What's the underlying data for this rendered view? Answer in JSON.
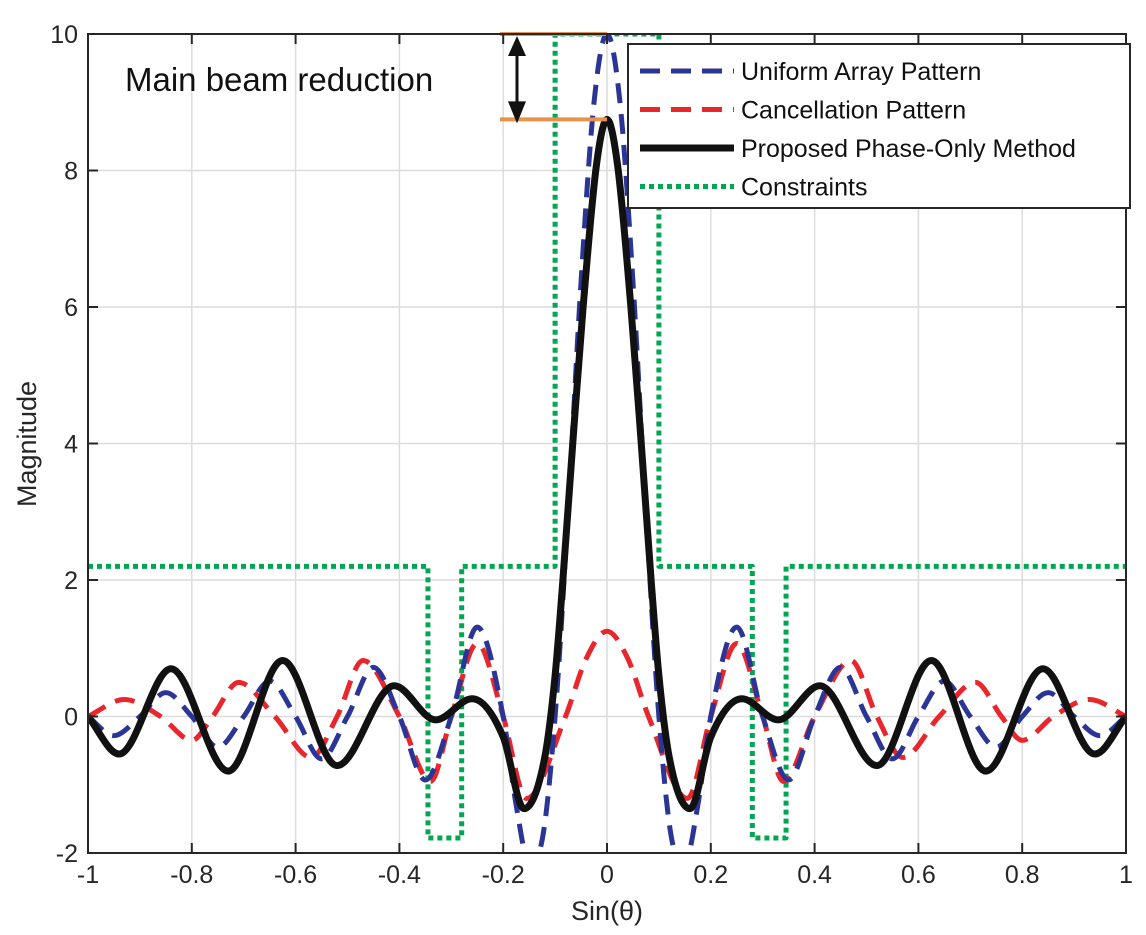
{
  "chart_data": {
    "type": "line",
    "title": "",
    "xlabel": "Sin(θ)",
    "ylabel": "Magnitude",
    "xlim": [
      -1,
      1
    ],
    "ylim": [
      -2,
      10
    ],
    "xticks": [
      -1,
      -0.8,
      -0.6,
      -0.4,
      -0.2,
      0,
      0.2,
      0.4,
      0.6,
      0.8,
      1
    ],
    "xtick_labels": [
      "-1",
      "-0.8",
      "-0.6",
      "-0.4",
      "-0.2",
      "0",
      "0.2",
      "0.4",
      "0.6",
      "0.8",
      "1"
    ],
    "yticks": [
      -2,
      0,
      2,
      4,
      6,
      8,
      10
    ],
    "ytick_labels": [
      "-2",
      "0",
      "2",
      "4",
      "6",
      "8",
      "10"
    ],
    "grid": true,
    "legend_position": "top-right",
    "series": [
      {
        "name": "Uniform Array Pattern",
        "style": "dashed",
        "color": "#2b3596",
        "x": [
          -1,
          -0.95,
          -0.9,
          -0.85,
          -0.8,
          -0.75,
          -0.7,
          -0.65,
          -0.6,
          -0.55,
          -0.5,
          -0.45,
          -0.4,
          -0.35,
          -0.3,
          -0.25,
          -0.2,
          -0.175,
          -0.15,
          -0.125,
          -0.1,
          -0.075,
          -0.05,
          -0.025,
          0,
          0.025,
          0.05,
          0.075,
          0.1,
          0.125,
          0.15,
          0.175,
          0.2,
          0.25,
          0.3,
          0.35,
          0.4,
          0.45,
          0.5,
          0.55,
          0.6,
          0.65,
          0.7,
          0.75,
          0.8,
          0.85,
          0.9,
          0.95,
          1
        ],
        "y": [
          0,
          -0.28,
          0,
          0.35,
          0,
          -0.45,
          0,
          0.52,
          0,
          -0.62,
          0,
          0.72,
          0,
          -0.93,
          0,
          1.31,
          0,
          -1.3,
          -2.14,
          -1.81,
          0,
          3.0,
          6.37,
          9.0,
          10,
          9.0,
          6.37,
          3.0,
          0,
          -1.81,
          -2.14,
          -1.3,
          0,
          1.31,
          0,
          -0.93,
          0,
          0.72,
          0,
          -0.62,
          0,
          0.52,
          0,
          -0.45,
          0,
          0.35,
          0,
          -0.28,
          0
        ]
      },
      {
        "name": "Cancellation Pattern",
        "style": "dashed",
        "color": "#e8262b",
        "x": [
          -1,
          -0.93,
          -0.86,
          -0.8,
          -0.76,
          -0.71,
          -0.64,
          -0.57,
          -0.52,
          -0.47,
          -0.4,
          -0.34,
          -0.3,
          -0.25,
          -0.2,
          -0.155,
          -0.08,
          -0.04,
          0,
          0.04,
          0.08,
          0.155,
          0.2,
          0.25,
          0.3,
          0.34,
          0.4,
          0.47,
          0.52,
          0.57,
          0.64,
          0.71,
          0.76,
          0.8,
          0.86,
          0.93,
          1
        ],
        "y": [
          0,
          0.25,
          0,
          -0.35,
          0,
          0.5,
          0,
          -0.6,
          0,
          0.82,
          0,
          -0.95,
          0,
          1.07,
          0,
          -1.2,
          0,
          0.85,
          1.25,
          0.85,
          0,
          -1.2,
          0,
          1.07,
          0,
          -0.95,
          0,
          0.82,
          0,
          -0.6,
          0,
          0.5,
          0,
          -0.35,
          0,
          0.25,
          0
        ]
      },
      {
        "name": "Proposed Phase-Only Method",
        "style": "solid",
        "color": "#111111",
        "x": [
          -1,
          -0.94,
          -0.84,
          -0.73,
          -0.625,
          -0.52,
          -0.41,
          -0.33,
          -0.26,
          -0.2,
          -0.16,
          -0.12,
          -0.1,
          -0.085,
          -0.066,
          -0.046,
          -0.02,
          0,
          0.02,
          0.046,
          0.066,
          0.085,
          0.1,
          0.12,
          0.16,
          0.2,
          0.26,
          0.33,
          0.41,
          0.52,
          0.625,
          0.73,
          0.84,
          0.94,
          1
        ],
        "y": [
          0,
          -0.55,
          0.7,
          -0.8,
          0.82,
          -0.72,
          0.45,
          -0.05,
          0.26,
          -0.3,
          -1.35,
          -0.6,
          0.6,
          2,
          4,
          6,
          8.1,
          8.75,
          8.1,
          6,
          4,
          2,
          0.6,
          -0.6,
          -1.35,
          -0.3,
          0.26,
          -0.05,
          0.45,
          -0.72,
          0.82,
          -0.8,
          0.7,
          -0.55,
          0
        ]
      },
      {
        "name": "Constraints",
        "style": "dotted",
        "color": "#00a651",
        "x": [
          -1,
          -0.345,
          -0.345,
          -0.28,
          -0.28,
          -0.1,
          -0.1,
          0.1,
          0.1,
          0.28,
          0.28,
          0.345,
          0.345,
          1
        ],
        "y": [
          2.2,
          2.2,
          -1.78,
          -1.78,
          2.2,
          2.2,
          10,
          10,
          2.2,
          2.2,
          -1.78,
          -1.78,
          2.2,
          2.2
        ]
      }
    ],
    "annotations": [
      {
        "text": "Main beam reduction",
        "from_y": 10,
        "to_y": 8.75,
        "color": "#e8924a"
      }
    ]
  }
}
